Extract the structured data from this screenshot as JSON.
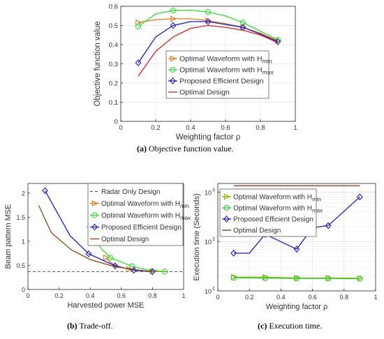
{
  "captions": {
    "a_label": "(a)",
    "a_text": " Objective function value.",
    "b_label": "(b)",
    "b_text": " Trade-off.",
    "c_label": "(c)",
    "c_text": " Execution time."
  },
  "chart_data": [
    {
      "id": "a",
      "type": "line",
      "xlabel": "Weighting factor ρ",
      "ylabel": "Objective function value",
      "xlim": [
        0,
        1
      ],
      "ylim": [
        0,
        0.6
      ],
      "xticks": [
        0,
        0.2,
        0.4,
        0.6,
        0.8,
        1
      ],
      "xtick_labels": [
        "0",
        "0.2",
        "0.4",
        "0.6",
        "0.8",
        "1"
      ],
      "yticks": [
        0,
        0.1,
        0.2,
        0.3,
        0.4,
        0.5,
        0.6
      ],
      "ytick_labels": [
        "0",
        "0.1",
        "0.2",
        "0.3",
        "0.4",
        "0.5",
        "0.6"
      ],
      "grid": true,
      "legend_position": "lower-right",
      "series": [
        {
          "name": "Optimal Waveform with H",
          "sub": "min",
          "color": "#e07b20",
          "marker": "triangle-right",
          "x": [
            0.1,
            0.2,
            0.3,
            0.4,
            0.5,
            0.6,
            0.7,
            0.8,
            0.9
          ],
          "y": [
            0.515,
            0.53,
            0.535,
            0.535,
            0.525,
            0.51,
            0.49,
            0.46,
            0.42
          ],
          "marker_idx": [
            0,
            2,
            4,
            6,
            8
          ]
        },
        {
          "name": "Optimal Waveform with H",
          "sub": "max",
          "color": "#33dd33",
          "marker": "circle",
          "x": [
            0.1,
            0.2,
            0.3,
            0.4,
            0.5,
            0.6,
            0.7,
            0.8,
            0.9
          ],
          "y": [
            0.495,
            0.56,
            0.578,
            0.58,
            0.57,
            0.55,
            0.515,
            0.47,
            0.425
          ],
          "marker_idx": [
            0,
            2,
            4,
            6,
            8
          ]
        },
        {
          "name": "Proposed Efficient Design",
          "color": "#1c1cc8",
          "marker": "diamond",
          "x": [
            0.1,
            0.2,
            0.3,
            0.4,
            0.5,
            0.6,
            0.7,
            0.8,
            0.9
          ],
          "y": [
            0.305,
            0.44,
            0.5,
            0.52,
            0.52,
            0.505,
            0.49,
            0.455,
            0.415
          ],
          "marker_idx": [
            0,
            2,
            4,
            6,
            8
          ]
        },
        {
          "name": "Optimal Design",
          "color": "#dd2222",
          "marker": "none",
          "x": [
            0.1,
            0.2,
            0.3,
            0.4,
            0.5,
            0.6,
            0.7,
            0.8,
            0.9
          ],
          "y": [
            0.235,
            0.365,
            0.44,
            0.485,
            0.5,
            0.49,
            0.475,
            0.45,
            0.41
          ],
          "marker_idx": []
        }
      ]
    },
    {
      "id": "b",
      "type": "line",
      "xlabel": "Harvested power MSE",
      "ylabel": "Beam pattern MSE",
      "xlim": [
        0,
        1
      ],
      "ylim": [
        0,
        2.2
      ],
      "xticks": [
        0,
        0.2,
        0.4,
        0.6,
        0.8,
        1
      ],
      "xtick_labels": [
        "0",
        "0.2",
        "0.4",
        "0.6",
        "0.8",
        "1"
      ],
      "yticks": [
        0,
        0.5,
        1,
        1.5,
        2
      ],
      "ytick_labels": [
        "0",
        "0.5",
        "1",
        "1.5",
        "2"
      ],
      "grid": false,
      "legend_position": "top-right",
      "reference": {
        "name": "Radar Only Design",
        "y": 0.37,
        "color": "#555555"
      },
      "series": [
        {
          "name": "Optimal Waveform with H",
          "sub": "min",
          "color": "#e07b20",
          "marker": "triangle-right",
          "x": [
            0.5,
            0.53,
            0.58,
            0.65,
            0.72,
            0.8,
            0.88
          ],
          "y": [
            0.66,
            0.56,
            0.48,
            0.42,
            0.39,
            0.38,
            0.37
          ],
          "marker_idx": [
            0,
            3,
            5
          ]
        },
        {
          "name": "Optimal Waveform with H",
          "sub": "max",
          "color": "#33dd33",
          "marker": "circle",
          "x": [
            0.4,
            0.47,
            0.53,
            0.67,
            0.75,
            0.88
          ],
          "y": [
            1.3,
            0.85,
            0.66,
            0.48,
            0.42,
            0.37
          ],
          "marker_idx": [
            0,
            2,
            3,
            5
          ]
        },
        {
          "name": "Proposed Efficient Design",
          "color": "#1c1cc8",
          "marker": "diamond",
          "x": [
            0.11,
            0.27,
            0.39,
            0.56,
            0.68,
            0.8
          ],
          "y": [
            2.05,
            1.12,
            0.74,
            0.49,
            0.4,
            0.37
          ],
          "marker_idx": [
            0,
            2,
            3,
            4,
            5
          ]
        },
        {
          "name": "Optimal Design",
          "color": "#8b4513",
          "marker": "none",
          "x": [
            0.07,
            0.15,
            0.28,
            0.4,
            0.56,
            0.72,
            0.8
          ],
          "y": [
            1.74,
            1.18,
            0.82,
            0.62,
            0.47,
            0.4,
            0.37
          ],
          "marker_idx": []
        }
      ]
    },
    {
      "id": "c",
      "type": "line",
      "yscale": "log",
      "xlabel": "Weighting factor ρ",
      "ylabel": "Execution time (Seconds)",
      "xlim": [
        0,
        1
      ],
      "ylim": [
        10,
        1500
      ],
      "xticks": [
        0,
        0.2,
        0.4,
        0.6,
        0.8,
        1
      ],
      "xtick_labels": [
        "0",
        "0.2",
        "0.4",
        "0.6",
        "0.8",
        "1"
      ],
      "yticks": [
        10,
        100,
        1000
      ],
      "ytick_base": "10",
      "ytick_exps": [
        "1",
        "2",
        "3"
      ],
      "grid": true,
      "legend_position": "top-left",
      "series": [
        {
          "name": "Optimal Waveform with H",
          "sub": "min",
          "color": "#8cb400",
          "marker": "triangle-right",
          "x": [
            0.1,
            0.2,
            0.3,
            0.4,
            0.5,
            0.6,
            0.7,
            0.8,
            0.9
          ],
          "y": [
            19,
            19,
            19,
            18.6,
            18.3,
            18.2,
            18.2,
            18.2,
            18
          ],
          "marker_idx": [
            0,
            2,
            4,
            6,
            8
          ]
        },
        {
          "name": "Optimal Waveform with H",
          "sub": "max",
          "color": "#33cc33",
          "marker": "circle",
          "x": [
            0.1,
            0.2,
            0.3,
            0.4,
            0.5,
            0.6,
            0.7,
            0.8,
            0.9
          ],
          "y": [
            18.4,
            18.3,
            18.1,
            18,
            17.9,
            17.8,
            17.8,
            17.7,
            17.6
          ],
          "marker_idx": [
            0,
            2,
            4,
            6,
            8
          ]
        },
        {
          "name": "Proposed Efficient Design",
          "color": "#1c1cc8",
          "marker": "diamond",
          "x": [
            0.1,
            0.2,
            0.3,
            0.5,
            0.6,
            0.7,
            0.9
          ],
          "y": [
            58,
            58,
            140,
            70,
            190,
            210,
            800
          ],
          "marker_idx": [
            0,
            2,
            3,
            5,
            6
          ]
        },
        {
          "name": "Optimal Design",
          "color": "#8b2a10",
          "marker": "none",
          "x": [
            0.1,
            0.3,
            0.5,
            0.7,
            0.9
          ],
          "y": [
            1350,
            1350,
            1350,
            1350,
            1350
          ],
          "marker_idx": []
        }
      ]
    }
  ]
}
